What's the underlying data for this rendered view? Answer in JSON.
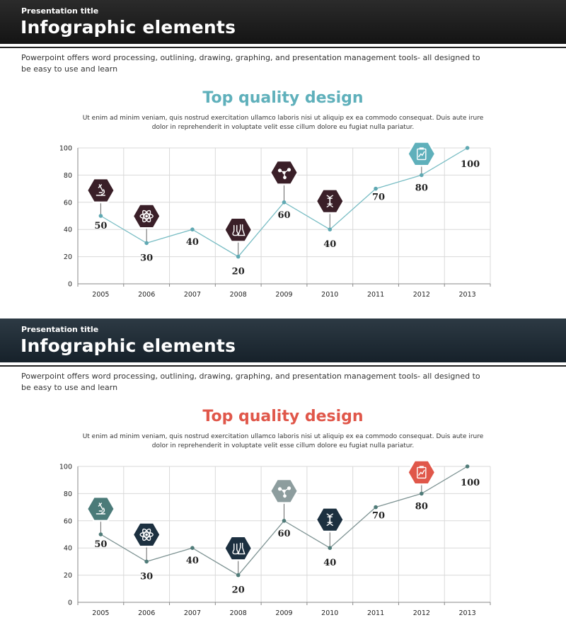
{
  "slides": [
    {
      "presentation_title": "Presentation title",
      "title": "Infographic elements",
      "intro": "Powerpoint offers word processing, outlining, drawing, graphing, and presentation management tools- all designed to be easy to use and learn",
      "chart_title": "Top quality design",
      "chart_subtitle": "Ut enim ad minim veniam, quis nostrud exercitation  ullamco laboris nisi ut aliquip ex ea commodo  consequat. Duis aute irure dolor in reprehenderit in voluptate velit esse cillum dolore eu fugiat nulla pariatur.",
      "colors": {
        "line": "#79bdc4",
        "point": "#5fa8b2",
        "hex_default": "#3a1f28",
        "hex_highlight": "#5fb0bb",
        "title": "#5fb0bb"
      },
      "icons": [
        {
          "category": "2005",
          "icon": "microscope-icon",
          "tone": "default"
        },
        {
          "category": "2006",
          "icon": "atom-icon",
          "tone": "default"
        },
        {
          "category": "2008",
          "icon": "flask-icon",
          "tone": "default"
        },
        {
          "category": "2009",
          "icon": "molecule-icon",
          "tone": "default"
        },
        {
          "category": "2010",
          "icon": "dna-icon",
          "tone": "default"
        },
        {
          "category": "2012",
          "icon": "clipboard-chart-icon",
          "tone": "highlight"
        }
      ]
    },
    {
      "presentation_title": "Presentation title",
      "title": "Infographic elements",
      "intro": "Powerpoint offers word processing, outlining, drawing, graphing, and presentation management tools- all designed to be easy to use and learn",
      "chart_title": "Top quality design",
      "chart_subtitle": "Ut enim ad minim veniam, quis nostrud exercitation  ullamco laboris nisi ut aliquip ex ea commodo  consequat. Duis aute irure dolor in reprehenderit in voluptate velit esse cillum dolore eu fugiat nulla pariatur.",
      "colors": {
        "line": "#7f9494",
        "point": "#4f7b78",
        "hex_default": "#1c3040",
        "hex_teal": "#4b7b79",
        "hex_gray": "#8d9d9e",
        "hex_highlight": "#e0574a",
        "title": "#e0574a"
      },
      "icons": [
        {
          "category": "2005",
          "icon": "microscope-icon",
          "tone": "teal"
        },
        {
          "category": "2006",
          "icon": "atom-icon",
          "tone": "default"
        },
        {
          "category": "2008",
          "icon": "flask-icon",
          "tone": "default"
        },
        {
          "category": "2009",
          "icon": "molecule-icon",
          "tone": "gray"
        },
        {
          "category": "2010",
          "icon": "dna-icon",
          "tone": "default"
        },
        {
          "category": "2012",
          "icon": "clipboard-chart-icon",
          "tone": "highlight"
        }
      ]
    }
  ],
  "chart_data": [
    {
      "type": "line",
      "title": "Top quality design",
      "categories": [
        "2005",
        "2006",
        "2007",
        "2008",
        "2009",
        "2010",
        "2011",
        "2012",
        "2013"
      ],
      "values": [
        50,
        30,
        40,
        20,
        60,
        40,
        70,
        80,
        100
      ],
      "ylim": [
        0,
        100
      ],
      "yticks": [
        0,
        20,
        40,
        60,
        80,
        100
      ],
      "grid": true,
      "xlabel": "",
      "ylabel": ""
    },
    {
      "type": "line",
      "title": "Top quality design",
      "categories": [
        "2005",
        "2006",
        "2007",
        "2008",
        "2009",
        "2010",
        "2011",
        "2012",
        "2013"
      ],
      "values": [
        50,
        30,
        40,
        20,
        60,
        40,
        70,
        80,
        100
      ],
      "ylim": [
        0,
        100
      ],
      "yticks": [
        0,
        20,
        40,
        60,
        80,
        100
      ],
      "grid": true,
      "xlabel": "",
      "ylabel": ""
    }
  ]
}
